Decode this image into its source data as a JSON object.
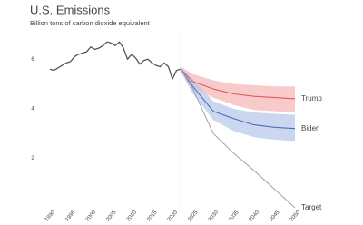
{
  "chart_data": {
    "type": "line",
    "title": "U.S. Emissions",
    "subtitle": "Billion tons of carbon dioxide equivalent",
    "xlim": [
      1990,
      2050
    ],
    "xticks": [
      1990,
      1995,
      2000,
      2005,
      2010,
      2015,
      2020,
      2025,
      2030,
      2035,
      2040,
      2045,
      2050
    ],
    "ylim": [
      0,
      7
    ],
    "yticks": [
      2,
      4,
      6
    ],
    "series": [
      {
        "name": null,
        "color": "#555555",
        "x": [
          1990,
          1991,
          1992,
          1993,
          1994,
          1995,
          1996,
          1997,
          1998,
          1999,
          2000,
          2001,
          2002,
          2003,
          2004,
          2005,
          2006,
          2007,
          2008,
          2009,
          2010,
          2011,
          2012,
          2013,
          2014,
          2015,
          2016,
          2017,
          2018,
          2019,
          2020,
          2021,
          2022
        ],
        "values": [
          5.6,
          5.55,
          5.65,
          5.75,
          5.85,
          5.9,
          6.1,
          6.2,
          6.25,
          6.3,
          6.5,
          6.4,
          6.45,
          6.55,
          6.7,
          6.65,
          6.55,
          6.7,
          6.45,
          6.0,
          6.2,
          6.05,
          5.8,
          5.95,
          6.0,
          5.85,
          5.75,
          5.7,
          5.85,
          5.7,
          5.2,
          5.55,
          5.6
        ]
      },
      {
        "name": "Trump",
        "color": "#e05a5a",
        "band_color": "#f7b8b8",
        "x": [
          2022,
          2025,
          2030,
          2035,
          2040,
          2045,
          2050
        ],
        "values": [
          5.6,
          5.1,
          4.8,
          4.6,
          4.5,
          4.45,
          4.4
        ],
        "low": [
          5.5,
          4.85,
          4.45,
          4.15,
          3.95,
          3.9,
          3.85
        ],
        "high": [
          5.7,
          5.4,
          5.15,
          5.0,
          4.95,
          4.9,
          4.9
        ]
      },
      {
        "name": "Biden",
        "color": "#4a6fbd",
        "band_color": "#b9c8ea",
        "x": [
          2022,
          2025,
          2030,
          2035,
          2040,
          2045,
          2050
        ],
        "values": [
          5.6,
          4.9,
          3.9,
          3.6,
          3.35,
          3.25,
          3.2
        ],
        "low": [
          5.5,
          4.6,
          3.55,
          3.1,
          2.85,
          2.75,
          2.7
        ],
        "high": [
          5.7,
          5.2,
          4.3,
          4.0,
          3.85,
          3.8,
          3.75
        ]
      },
      {
        "name": "Target",
        "color": "#aaaaaa",
        "x": [
          2022,
          2025,
          2030,
          2035,
          2040,
          2045,
          2050
        ],
        "values": [
          5.6,
          4.8,
          3.0,
          2.2,
          1.5,
          0.75,
          0
        ]
      }
    ]
  }
}
